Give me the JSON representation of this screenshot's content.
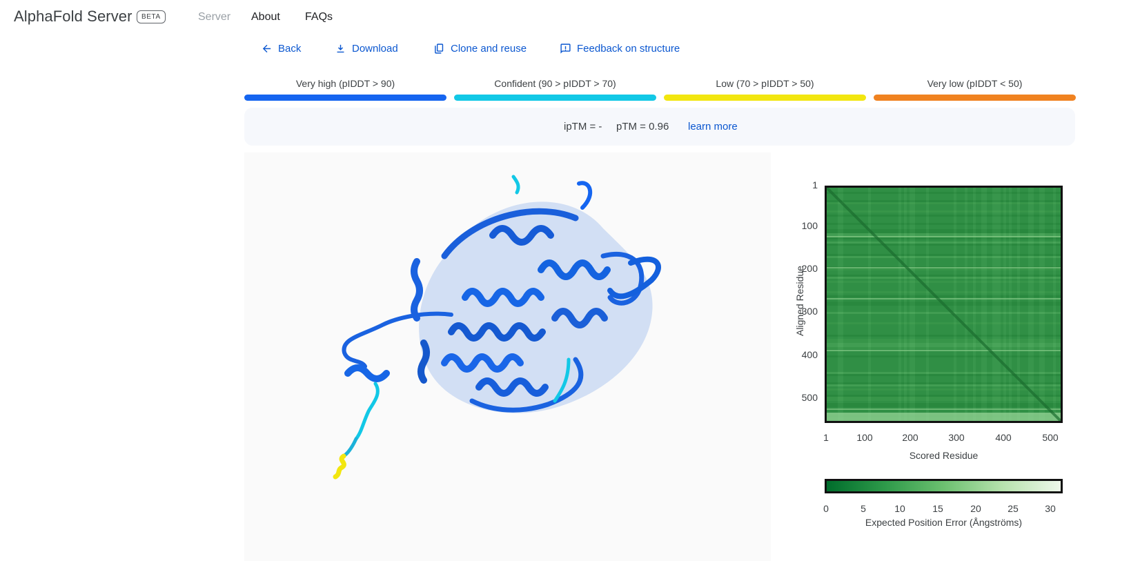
{
  "header": {
    "brand": "AlphaFold Server",
    "badge": "BETA",
    "nav": {
      "server": "Server",
      "about": "About",
      "faqs": "FAQs"
    }
  },
  "actions": {
    "back": "Back",
    "download": "Download",
    "clone": "Clone and reuse",
    "feedback": "Feedback on structure"
  },
  "plddt_legend": [
    {
      "label": "Very high (pIDDT > 90)",
      "color": "#1565f0"
    },
    {
      "label": "Confident (90 > pIDDT > 70)",
      "color": "#12c8e6"
    },
    {
      "label": "Low (70 > pIDDT > 50)",
      "color": "#f2e60f"
    },
    {
      "label": "Very low (pIDDT < 50)",
      "color": "#f08220"
    }
  ],
  "scores": {
    "iptm": "ipTM = -",
    "ptm": "pTM = 0.96",
    "learn_more": "learn more"
  },
  "pae": {
    "y_ticks": [
      "1",
      "100",
      "200",
      "300",
      "400",
      "500"
    ],
    "x_ticks": [
      "1",
      "100",
      "200",
      "300",
      "400",
      "500"
    ],
    "y_label": "Aligned Residue",
    "x_label": "Scored Residue",
    "colorbar_ticks": [
      "0",
      "5",
      "10",
      "15",
      "20",
      "25",
      "30"
    ],
    "colorbar_label": "Expected Position Error (Ångströms)"
  }
}
